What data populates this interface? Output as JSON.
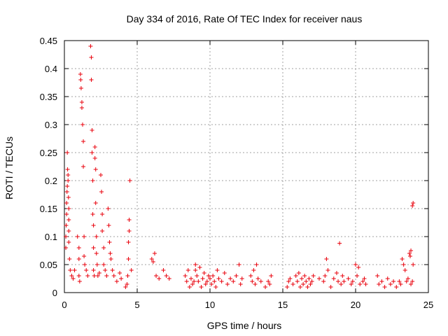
{
  "chart_data": {
    "type": "scatter",
    "title": "Day 334 of 2016, Rate Of TEC Index for receiver naus",
    "xlabel": "GPS time / hours",
    "ylabel": "ROTI / TECUs",
    "xlim": [
      0,
      25
    ],
    "ylim": [
      0,
      0.45
    ],
    "xticks": [
      0,
      5,
      10,
      15,
      20,
      25
    ],
    "yticks": [
      0,
      0.05,
      0.1,
      0.15,
      0.2,
      0.25,
      0.3,
      0.35,
      0.4,
      0.45
    ],
    "xtick_labels": [
      "0",
      "5",
      "10",
      "15",
      "20",
      "25"
    ],
    "ytick_labels": [
      "0",
      "0.05",
      "0.1",
      "0.15",
      "0.2",
      "0.25",
      "0.3",
      "0.35",
      "0.4",
      "0.45"
    ],
    "grid": true,
    "marker": "+",
    "color": "#e8000b",
    "series": [
      {
        "points": [
          [
            0.1,
            0.08
          ],
          [
            0.1,
            0.1
          ],
          [
            0.12,
            0.12
          ],
          [
            0.15,
            0.14
          ],
          [
            0.15,
            0.16
          ],
          [
            0.18,
            0.18
          ],
          [
            0.2,
            0.19
          ],
          [
            0.2,
            0.25
          ],
          [
            0.22,
            0.22
          ],
          [
            0.25,
            0.21
          ],
          [
            0.25,
            0.2
          ],
          [
            0.28,
            0.17
          ],
          [
            0.3,
            0.15
          ],
          [
            0.3,
            0.13
          ],
          [
            0.3,
            0.11
          ],
          [
            0.3,
            0.09
          ],
          [
            0.35,
            0.06
          ],
          [
            0.4,
            0.04
          ],
          [
            0.5,
            0.03
          ],
          [
            0.6,
            0.025
          ],
          [
            0.7,
            0.04
          ],
          [
            0.9,
            0.1
          ],
          [
            1.0,
            0.08
          ],
          [
            1.0,
            0.06
          ],
          [
            1.0,
            0.03
          ],
          [
            1.05,
            0.02
          ],
          [
            1.1,
            0.39
          ],
          [
            1.12,
            0.38
          ],
          [
            1.15,
            0.365
          ],
          [
            1.2,
            0.34
          ],
          [
            1.2,
            0.33
          ],
          [
            1.25,
            0.3
          ],
          [
            1.3,
            0.27
          ],
          [
            1.3,
            0.225
          ],
          [
            1.35,
            0.1
          ],
          [
            1.35,
            0.065
          ],
          [
            1.4,
            0.05
          ],
          [
            1.5,
            0.04
          ],
          [
            1.6,
            0.03
          ],
          [
            1.8,
            0.44
          ],
          [
            1.85,
            0.42
          ],
          [
            1.85,
            0.38
          ],
          [
            1.9,
            0.29
          ],
          [
            1.9,
            0.25
          ],
          [
            1.95,
            0.2
          ],
          [
            1.95,
            0.14
          ],
          [
            2.0,
            0.12
          ],
          [
            2.0,
            0.08
          ],
          [
            2.0,
            0.04
          ],
          [
            2.05,
            0.03
          ],
          [
            2.1,
            0.26
          ],
          [
            2.1,
            0.24
          ],
          [
            2.15,
            0.22
          ],
          [
            2.15,
            0.16
          ],
          [
            2.2,
            0.1
          ],
          [
            2.2,
            0.07
          ],
          [
            2.25,
            0.05
          ],
          [
            2.3,
            0.03
          ],
          [
            2.4,
            0.035
          ],
          [
            2.5,
            0.21
          ],
          [
            2.55,
            0.18
          ],
          [
            2.6,
            0.14
          ],
          [
            2.6,
            0.11
          ],
          [
            2.7,
            0.08
          ],
          [
            2.7,
            0.05
          ],
          [
            2.8,
            0.04
          ],
          [
            2.9,
            0.03
          ],
          [
            3.0,
            0.15
          ],
          [
            3.05,
            0.12
          ],
          [
            3.1,
            0.09
          ],
          [
            3.15,
            0.07
          ],
          [
            3.2,
            0.06
          ],
          [
            3.3,
            0.04
          ],
          [
            3.4,
            0.03
          ],
          [
            3.6,
            0.02
          ],
          [
            3.8,
            0.035
          ],
          [
            3.9,
            0.025
          ],
          [
            4.2,
            0.01
          ],
          [
            4.3,
            0.015
          ],
          [
            4.35,
            0.03
          ],
          [
            4.4,
            0.06
          ],
          [
            4.4,
            0.09
          ],
          [
            4.45,
            0.11
          ],
          [
            4.45,
            0.13
          ],
          [
            4.5,
            0.2
          ],
          [
            4.6,
            0.04
          ],
          [
            6.0,
            0.06
          ],
          [
            6.1,
            0.055
          ],
          [
            6.2,
            0.07
          ],
          [
            6.3,
            0.03
          ],
          [
            6.5,
            0.025
          ],
          [
            6.8,
            0.04
          ],
          [
            7.0,
            0.03
          ],
          [
            7.2,
            0.025
          ],
          [
            8.3,
            0.03
          ],
          [
            8.4,
            0.02
          ],
          [
            8.5,
            0.04
          ],
          [
            8.6,
            0.01
          ],
          [
            8.7,
            0.025
          ],
          [
            8.8,
            0.015
          ],
          [
            8.9,
            0.02
          ],
          [
            9.0,
            0.04
          ],
          [
            9.0,
            0.05
          ],
          [
            9.1,
            0.03
          ],
          [
            9.2,
            0.02
          ],
          [
            9.3,
            0.045
          ],
          [
            9.4,
            0.01
          ],
          [
            9.5,
            0.025
          ],
          [
            9.6,
            0.035
          ],
          [
            9.7,
            0.015
          ],
          [
            9.8,
            0.02
          ],
          [
            9.9,
            0.03
          ],
          [
            10.0,
            0.025
          ],
          [
            10.1,
            0.015
          ],
          [
            10.2,
            0.03
          ],
          [
            10.3,
            0.02
          ],
          [
            10.4,
            0.01
          ],
          [
            10.5,
            0.04
          ],
          [
            10.6,
            0.025
          ],
          [
            10.8,
            0.02
          ],
          [
            11.0,
            0.035
          ],
          [
            11.2,
            0.015
          ],
          [
            11.4,
            0.025
          ],
          [
            11.6,
            0.02
          ],
          [
            11.8,
            0.03
          ],
          [
            12.0,
            0.05
          ],
          [
            12.1,
            0.015
          ],
          [
            12.2,
            0.025
          ],
          [
            12.8,
            0.03
          ],
          [
            12.9,
            0.02
          ],
          [
            13.0,
            0.04
          ],
          [
            13.1,
            0.015
          ],
          [
            13.2,
            0.05
          ],
          [
            13.3,
            0.025
          ],
          [
            13.5,
            0.02
          ],
          [
            13.8,
            0.01
          ],
          [
            14.0,
            0.02
          ],
          [
            14.1,
            0.015
          ],
          [
            14.2,
            0.03
          ],
          [
            15.3,
            0.01
          ],
          [
            15.4,
            0.02
          ],
          [
            15.5,
            0.025
          ],
          [
            15.7,
            0.015
          ],
          [
            15.9,
            0.03
          ],
          [
            16.0,
            0.02
          ],
          [
            16.1,
            0.035
          ],
          [
            16.2,
            0.01
          ],
          [
            16.3,
            0.025
          ],
          [
            16.4,
            0.015
          ],
          [
            16.5,
            0.03
          ],
          [
            16.6,
            0.02
          ],
          [
            16.7,
            0.01
          ],
          [
            16.8,
            0.025
          ],
          [
            16.9,
            0.015
          ],
          [
            17.0,
            0.02
          ],
          [
            17.1,
            0.03
          ],
          [
            17.5,
            0.025
          ],
          [
            17.8,
            0.02
          ],
          [
            17.9,
            0.03
          ],
          [
            18.0,
            0.06
          ],
          [
            18.1,
            0.04
          ],
          [
            18.3,
            0.01
          ],
          [
            18.5,
            0.025
          ],
          [
            18.7,
            0.035
          ],
          [
            18.8,
            0.02
          ],
          [
            18.9,
            0.088
          ],
          [
            19.0,
            0.015
          ],
          [
            19.1,
            0.03
          ],
          [
            19.2,
            0.02
          ],
          [
            19.5,
            0.025
          ],
          [
            19.7,
            0.015
          ],
          [
            19.8,
            0.02
          ],
          [
            20.0,
            0.05
          ],
          [
            20.1,
            0.03
          ],
          [
            20.2,
            0.045
          ],
          [
            20.3,
            0.015
          ],
          [
            20.5,
            0.02
          ],
          [
            20.6,
            0.025
          ],
          [
            20.7,
            0.015
          ],
          [
            21.5,
            0.03
          ],
          [
            21.6,
            0.015
          ],
          [
            21.8,
            0.02
          ],
          [
            22.0,
            0.01
          ],
          [
            22.2,
            0.025
          ],
          [
            22.4,
            0.015
          ],
          [
            22.6,
            0.02
          ],
          [
            22.8,
            0.01
          ],
          [
            23.0,
            0.02
          ],
          [
            23.1,
            0.015
          ],
          [
            23.2,
            0.06
          ],
          [
            23.3,
            0.05
          ],
          [
            23.4,
            0.04
          ],
          [
            23.5,
            0.02
          ],
          [
            23.6,
            0.025
          ],
          [
            23.7,
            0.07
          ],
          [
            23.75,
            0.065
          ],
          [
            23.8,
            0.075
          ],
          [
            23.8,
            0.015
          ],
          [
            23.9,
            0.02
          ],
          [
            23.95,
            0.05
          ],
          [
            23.9,
            0.155
          ],
          [
            23.95,
            0.16
          ]
        ]
      }
    ]
  }
}
